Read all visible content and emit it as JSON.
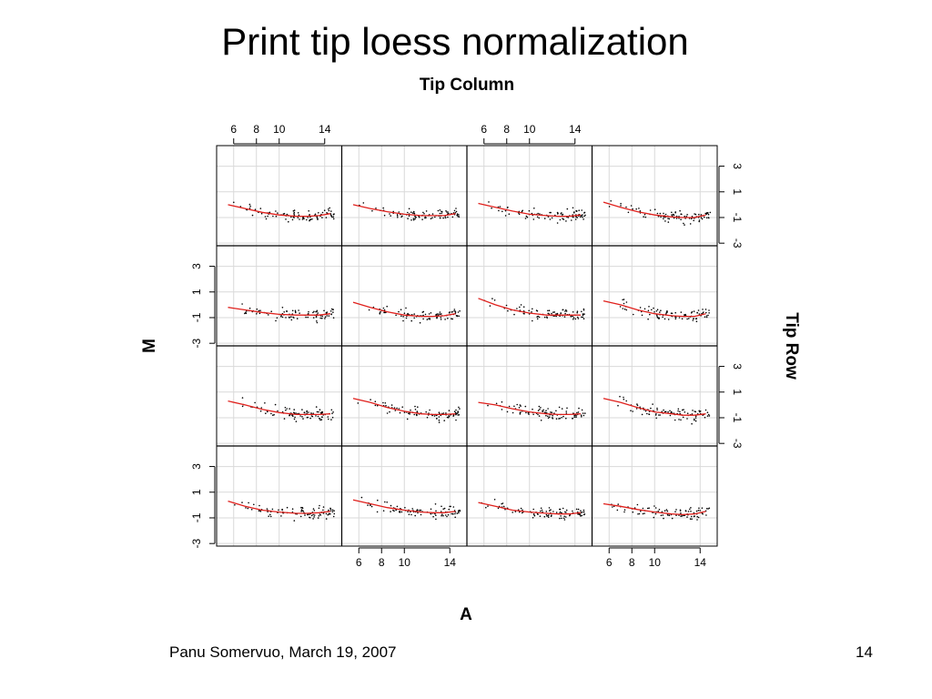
{
  "slide": {
    "title": "Print tip loess normalization",
    "footer_left": "Panu Somervuo, March 19, 2007",
    "page_number": "14"
  },
  "colors": {
    "loess_curve": "#e0201c",
    "points": "#000000",
    "grid": "#d9d9d9",
    "panel_border": "#000000"
  },
  "chart_data": {
    "type": "scatter",
    "title": "Tip Column",
    "xlabel": "A",
    "ylabel": "M",
    "right_label": "Tip Row",
    "grid": true,
    "xlim": [
      4.5,
      15.5
    ],
    "ylim": [
      -3.2,
      4.6
    ],
    "x_ticks": [
      6,
      8,
      10,
      14
    ],
    "y_ticks": [
      -3,
      -1,
      1,
      3
    ],
    "x_tick_labels": [
      "6",
      "8",
      "10",
      "14"
    ],
    "y_tick_labels": [
      "-3",
      "-1",
      "1",
      "3"
    ],
    "rows": 4,
    "columns": 4,
    "x_sample": [
      5.5,
      7,
      8.5,
      10,
      11.5,
      12.5,
      13.5,
      14.5
    ],
    "panels": [
      {
        "row": 1,
        "col": 1,
        "loess": [
          0.0,
          -0.3,
          -0.6,
          -0.8,
          -0.9,
          -0.9,
          -0.85,
          -0.7
        ]
      },
      {
        "row": 1,
        "col": 2,
        "loess": [
          0.0,
          -0.3,
          -0.55,
          -0.75,
          -0.85,
          -0.85,
          -0.85,
          -0.7
        ]
      },
      {
        "row": 1,
        "col": 3,
        "loess": [
          0.1,
          -0.2,
          -0.5,
          -0.75,
          -0.85,
          -0.9,
          -0.9,
          -0.8
        ]
      },
      {
        "row": 1,
        "col": 4,
        "loess": [
          0.2,
          -0.2,
          -0.55,
          -0.8,
          -0.95,
          -1.0,
          -1.0,
          -0.8
        ]
      },
      {
        "row": 2,
        "col": 1,
        "loess": [
          -0.2,
          -0.4,
          -0.6,
          -0.75,
          -0.8,
          -0.8,
          -0.8,
          -0.7
        ]
      },
      {
        "row": 2,
        "col": 2,
        "loess": [
          0.2,
          -0.2,
          -0.55,
          -0.8,
          -0.9,
          -0.9,
          -0.85,
          -0.7
        ]
      },
      {
        "row": 2,
        "col": 3,
        "loess": [
          0.5,
          0.0,
          -0.4,
          -0.65,
          -0.8,
          -0.8,
          -0.8,
          -0.8
        ]
      },
      {
        "row": 2,
        "col": 4,
        "loess": [
          0.3,
          0.0,
          -0.4,
          -0.7,
          -0.85,
          -0.9,
          -0.9,
          -0.7
        ]
      },
      {
        "row": 3,
        "col": 1,
        "loess": [
          0.3,
          0.0,
          -0.35,
          -0.6,
          -0.75,
          -0.75,
          -0.75,
          -0.7
        ]
      },
      {
        "row": 3,
        "col": 2,
        "loess": [
          0.5,
          0.2,
          -0.2,
          -0.5,
          -0.7,
          -0.75,
          -0.75,
          -0.7
        ]
      },
      {
        "row": 3,
        "col": 3,
        "loess": [
          0.2,
          0.0,
          -0.3,
          -0.55,
          -0.7,
          -0.75,
          -0.75,
          -0.7
        ]
      },
      {
        "row": 3,
        "col": 4,
        "loess": [
          0.5,
          0.2,
          -0.2,
          -0.55,
          -0.7,
          -0.8,
          -0.8,
          -0.7
        ]
      },
      {
        "row": 4,
        "col": 1,
        "loess": [
          0.3,
          -0.1,
          -0.4,
          -0.55,
          -0.65,
          -0.65,
          -0.6,
          -0.5
        ]
      },
      {
        "row": 4,
        "col": 2,
        "loess": [
          0.4,
          0.1,
          -0.2,
          -0.4,
          -0.55,
          -0.6,
          -0.6,
          -0.5
        ]
      },
      {
        "row": 4,
        "col": 3,
        "loess": [
          0.2,
          -0.1,
          -0.4,
          -0.55,
          -0.65,
          -0.7,
          -0.7,
          -0.6
        ]
      },
      {
        "row": 4,
        "col": 4,
        "loess": [
          0.1,
          -0.1,
          -0.35,
          -0.55,
          -0.7,
          -0.75,
          -0.7,
          -0.5
        ]
      }
    ]
  }
}
